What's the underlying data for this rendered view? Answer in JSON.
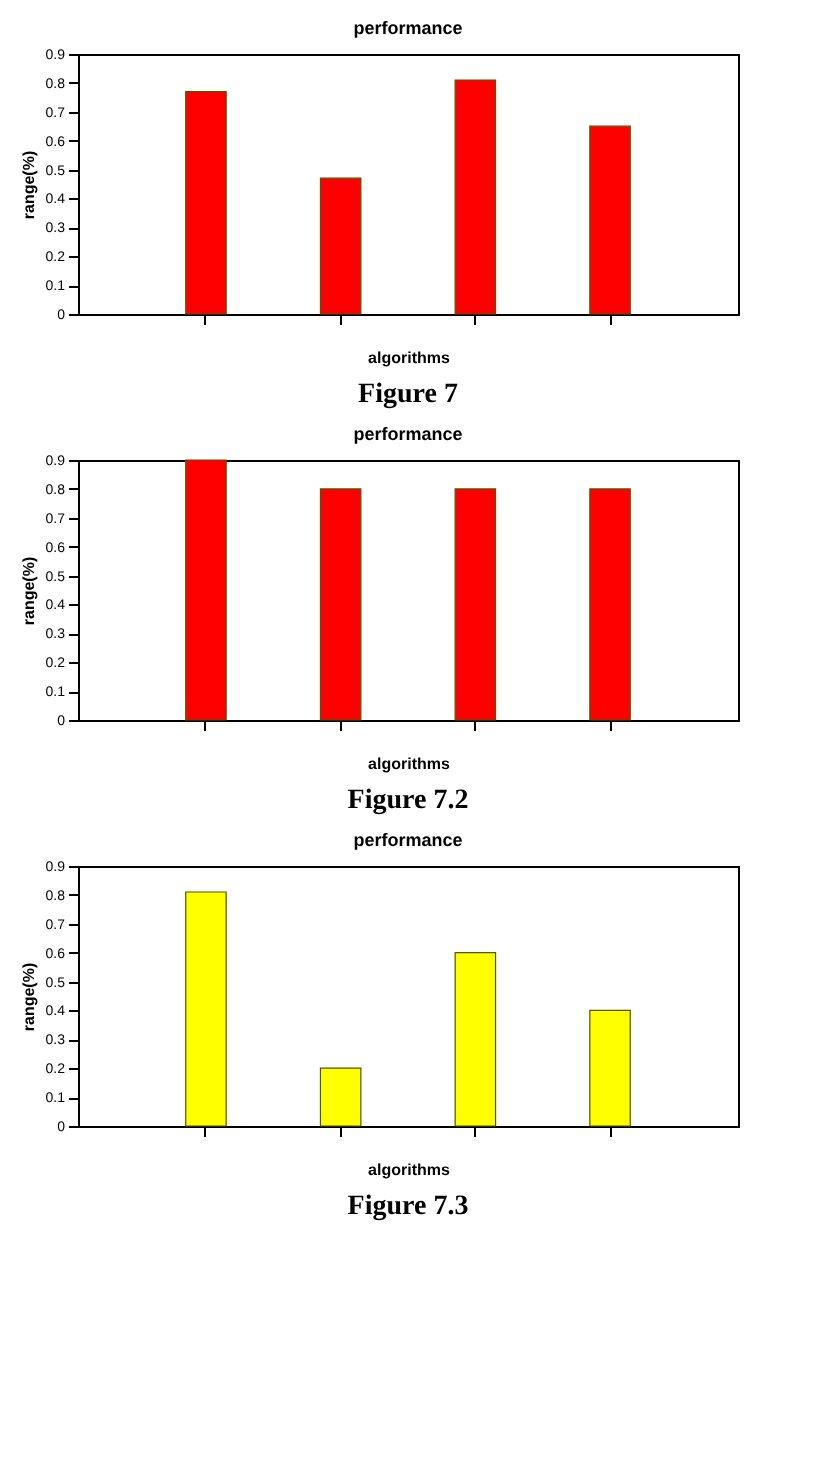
{
  "chart_data": [
    {
      "type": "bar",
      "title": "performance",
      "xlabel": "algorithms",
      "ylabel": "range(%)",
      "categories": [
        null,
        null,
        null,
        null
      ],
      "values": [
        0.77,
        0.47,
        0.81,
        0.65
      ],
      "color": "#ff0000",
      "ylim": [
        0,
        0.9
      ],
      "yticks": [
        0,
        0.1,
        0.2,
        0.3,
        0.4,
        0.5,
        0.6,
        0.7,
        0.8,
        0.9
      ],
      "grid": false,
      "annotations": [
        "Figure 7"
      ]
    },
    {
      "type": "bar",
      "title": "performance",
      "xlabel": "algorithms",
      "ylabel": "range(%)",
      "categories": [
        null,
        null,
        null,
        null
      ],
      "values": [
        0.9,
        0.8,
        0.8,
        0.8
      ],
      "color": "#ff0000",
      "ylim": [
        0,
        0.9
      ],
      "yticks": [
        0,
        0.1,
        0.2,
        0.3,
        0.4,
        0.5,
        0.6,
        0.7,
        0.8,
        0.9
      ],
      "grid": false,
      "annotations": [
        "Figure 7.2"
      ]
    },
    {
      "type": "bar",
      "title": "performance",
      "xlabel": "algorithms",
      "ylabel": "range(%)",
      "categories": [
        null,
        null,
        null,
        null
      ],
      "values": [
        0.81,
        0.2,
        0.6,
        0.4
      ],
      "color": "#ffff00",
      "ylim": [
        0,
        0.9
      ],
      "yticks": [
        0,
        0.1,
        0.2,
        0.3,
        0.4,
        0.5,
        0.6,
        0.7,
        0.8,
        0.9
      ],
      "grid": false,
      "annotations": [
        "Figure 7.3"
      ]
    }
  ]
}
